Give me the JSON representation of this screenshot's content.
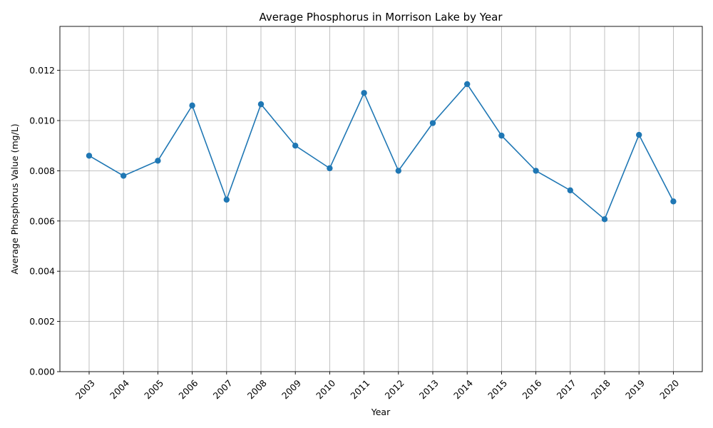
{
  "chart_data": {
    "type": "line",
    "title": "Average Phosphorus in Morrison Lake by Year",
    "xlabel": "Year",
    "ylabel": "Average Phosphorus Value (mg/L)",
    "x": [
      "2003",
      "2004",
      "2005",
      "2006",
      "2007",
      "2008",
      "2009",
      "2010",
      "2011",
      "2012",
      "2013",
      "2014",
      "2015",
      "2016",
      "2017",
      "2018",
      "2019",
      "2020"
    ],
    "series": [
      {
        "values": [
          0.0086,
          0.0078,
          0.0084,
          0.0106,
          0.00685,
          0.01065,
          0.009,
          0.0081,
          0.0111,
          0.008,
          0.0099,
          0.01145,
          0.0094,
          0.008,
          0.00722,
          0.00607,
          0.00943,
          0.00678
        ],
        "color": "#1f77b4",
        "marker": "circle"
      }
    ],
    "ylim": [
      0,
      0.01375
    ],
    "yticks": [
      "0.000",
      "0.002",
      "0.004",
      "0.006",
      "0.008",
      "0.010",
      "0.012"
    ],
    "ytick_values": [
      0,
      0.002,
      0.004,
      0.006,
      0.008,
      0.01,
      0.012
    ],
    "grid": true,
    "legend": "none"
  }
}
